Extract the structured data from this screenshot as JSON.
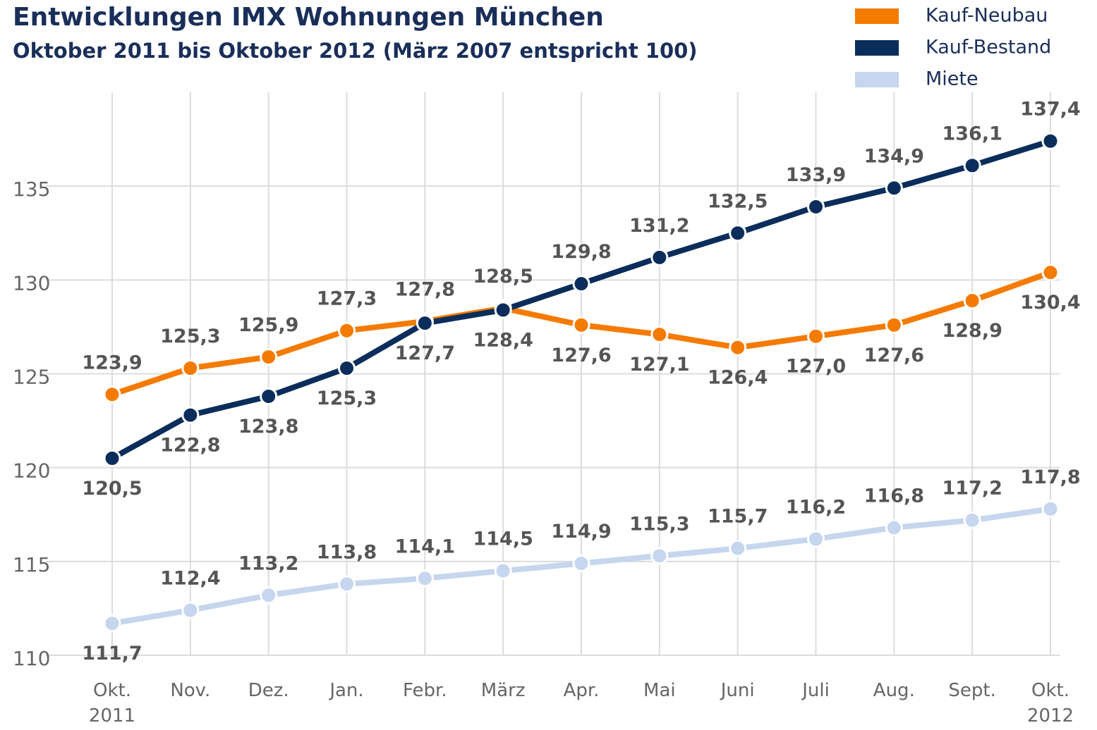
{
  "chart_data": {
    "type": "line",
    "title": "Entwicklungen IMX Wohnungen München",
    "subtitle": "Oktober 2011 bis Oktober 2012 (März 2007 entspricht 100)",
    "categories": [
      "Okt. 2011",
      "Nov.",
      "Dez.",
      "Jan.",
      "Febr.",
      "März",
      "Apr.",
      "Mai",
      "Juni",
      "Juli",
      "Aug.",
      "Sept.",
      "Okt. 2012"
    ],
    "series": [
      {
        "name": "Kauf-Neubau",
        "color": "#f47b00",
        "values": [
          123.9,
          125.3,
          125.9,
          127.3,
          127.8,
          128.5,
          127.6,
          127.1,
          126.4,
          127.0,
          127.6,
          128.9,
          130.4
        ],
        "value_labels": [
          "123,9",
          "125,3",
          "125,9",
          "127,3",
          "127,8",
          "128,5",
          "127,6",
          "127,1",
          "126,4",
          "127,0",
          "127,6",
          "128,9",
          "130,4"
        ]
      },
      {
        "name": "Kauf-Bestand",
        "color": "#0b2d5b",
        "values": [
          120.5,
          122.8,
          123.8,
          125.3,
          127.7,
          128.4,
          129.8,
          131.2,
          132.5,
          133.9,
          134.9,
          136.1,
          137.4
        ],
        "value_labels": [
          "120,5",
          "122,8",
          "123,8",
          "125,3",
          "127,7",
          "128,4",
          "129,8",
          "131,2",
          "132,5",
          "133,9",
          "134,9",
          "136,1",
          "137,4"
        ]
      },
      {
        "name": "Miete",
        "color": "#c5d6ee",
        "values": [
          111.7,
          112.4,
          113.2,
          113.8,
          114.1,
          114.5,
          114.9,
          115.3,
          115.7,
          116.2,
          116.8,
          117.2,
          117.8
        ],
        "value_labels": [
          "111,7",
          "112,4",
          "113,2",
          "113,8",
          "114,1",
          "114,5",
          "114,9",
          "115,3",
          "115,7",
          "116,2",
          "116,8",
          "117,2",
          "117,8"
        ]
      }
    ],
    "ylim": [
      110,
      140
    ],
    "yticks": [
      110,
      115,
      120,
      125,
      130,
      135
    ],
    "grid": true,
    "legend": "top-right"
  }
}
